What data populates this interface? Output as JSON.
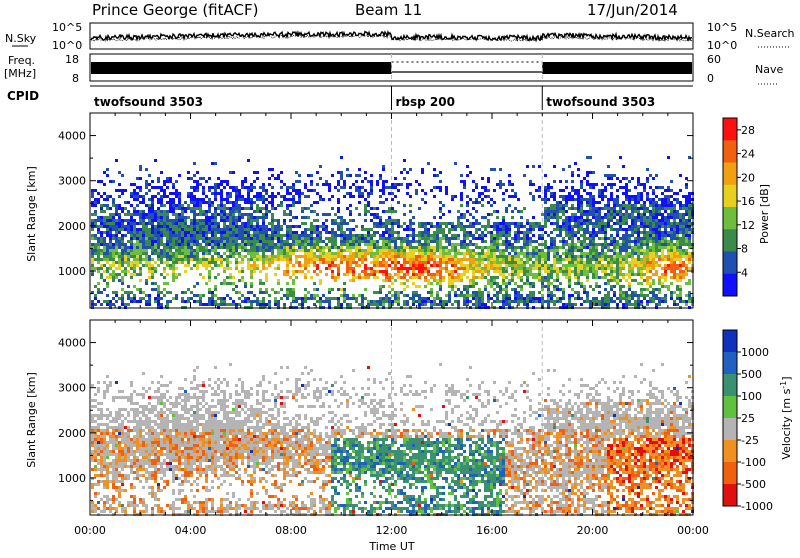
{
  "header": {
    "station": "Prince George (fitACF)",
    "beam": "Beam 11",
    "date": "17/Jun/2014"
  },
  "status_panels": {
    "nsky": {
      "label": "N.Sky",
      "ticks": [
        "10^5",
        "10^0"
      ],
      "right_ticks": [
        "10^5",
        "10^0"
      ],
      "right_label": "N.Search"
    },
    "freq": {
      "label_top": "Freq.",
      "label_bottom": "[MHz]",
      "ticks": [
        "18",
        "8"
      ],
      "right_ticks": [
        "60",
        "0"
      ],
      "right_label": "Nave"
    },
    "cpid": {
      "label": "CPID",
      "segments": [
        {
          "label": "twofsound 3503",
          "start_hour": 0,
          "end_hour": 12
        },
        {
          "label": "rbsp 200",
          "start_hour": 12,
          "end_hour": 18
        },
        {
          "label": "twofsound 3503",
          "start_hour": 18,
          "end_hour": 24
        }
      ]
    }
  },
  "x_axis": {
    "label": "Time UT",
    "ticks": [
      "00:00",
      "04:00",
      "08:00",
      "12:00",
      "16:00",
      "20:00",
      "00:00"
    ],
    "range_hours": [
      0,
      24
    ]
  },
  "chart_data": [
    {
      "type": "heatmap",
      "name": "power",
      "ylabel": "Slant Range [km]",
      "ylim": [
        180,
        4500
      ],
      "yticks": [
        "1000",
        "2000",
        "3000",
        "4000"
      ],
      "colorbar": {
        "label": "Power [dB]",
        "ticks": [
          "4",
          "8",
          "12",
          "16",
          "20",
          "24",
          "28"
        ],
        "range": [
          0,
          30
        ],
        "colors": [
          "#1010ff",
          "#2050b0",
          "#3a8a4a",
          "#6cbe3c",
          "#e8d020",
          "#f0a010",
          "#f06010",
          "#ff1010"
        ]
      }
    },
    {
      "type": "heatmap",
      "name": "velocity",
      "ylabel": "Slant Range [km]",
      "ylim": [
        180,
        4500
      ],
      "yticks": [
        "1000",
        "2000",
        "3000",
        "4000"
      ],
      "colorbar": {
        "label": "Velocity [m s^-1]",
        "ticks": [
          "1000",
          "500",
          "100",
          "25",
          "-25",
          "-100",
          "-500",
          "-1000"
        ],
        "colors": [
          "#1030c0",
          "#2060c0",
          "#3a9070",
          "#60c040",
          "#b4b4b4",
          "#f09020",
          "#f06010",
          "#e01010"
        ]
      }
    }
  ]
}
